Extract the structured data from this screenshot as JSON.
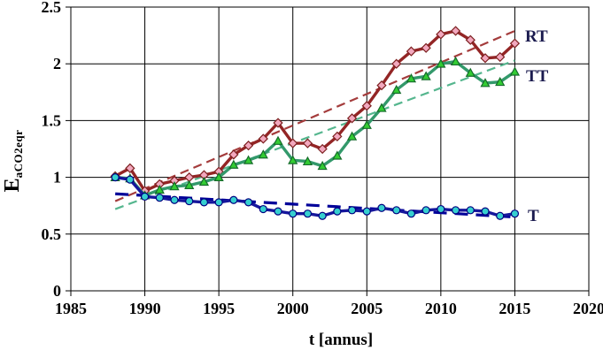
{
  "chart_data": {
    "type": "line",
    "title": "",
    "xlabel": "t [annus]",
    "ylabel_main": "E",
    "ylabel_sub": "aCO2eqr",
    "xlim": [
      1985,
      2020
    ],
    "ylim": [
      0,
      2.5
    ],
    "x_ticks": [
      1985,
      1990,
      1995,
      2000,
      2005,
      2010,
      2015,
      2020
    ],
    "y_ticks": [
      0,
      0.5,
      1,
      1.5,
      2,
      2.5
    ],
    "y_tick_labels": [
      "0",
      "0.5",
      "1",
      "1.5",
      "2",
      "2.5"
    ],
    "grid": true,
    "legend_position": "right-inline",
    "x": [
      1988,
      1989,
      1990,
      1991,
      1992,
      1993,
      1994,
      1995,
      1996,
      1997,
      1998,
      1999,
      2000,
      2001,
      2002,
      2003,
      2004,
      2005,
      2006,
      2007,
      2008,
      2009,
      2010,
      2011,
      2012,
      2013,
      2014,
      2015
    ],
    "series": [
      {
        "name": "RT",
        "line_color": "#932525",
        "marker": "diamond",
        "marker_fill": "#f2a8be",
        "marker_stroke": "#7c1f1f",
        "values": [
          1.01,
          1.08,
          0.88,
          0.94,
          0.97,
          1.0,
          1.02,
          1.05,
          1.2,
          1.28,
          1.34,
          1.48,
          1.3,
          1.3,
          1.25,
          1.36,
          1.52,
          1.63,
          1.81,
          2.0,
          2.11,
          2.14,
          2.26,
          2.29,
          2.21,
          2.05,
          2.06,
          2.18
        ]
      },
      {
        "name": "TT",
        "line_color": "#33996b",
        "marker": "triangle",
        "marker_fill": "#33cc33",
        "marker_stroke": "#156b2b",
        "values": [
          1.0,
          0.99,
          0.84,
          0.89,
          0.92,
          0.93,
          0.96,
          1.0,
          1.11,
          1.15,
          1.2,
          1.32,
          1.15,
          1.14,
          1.1,
          1.19,
          1.36,
          1.46,
          1.61,
          1.77,
          1.87,
          1.89,
          2.0,
          2.02,
          1.92,
          1.83,
          1.84,
          1.93
        ]
      },
      {
        "name": "T",
        "line_color": "#16169c",
        "marker": "circle",
        "marker_fill": "#36cfcf",
        "marker_stroke": "#000080",
        "values": [
          1.0,
          0.98,
          0.83,
          0.82,
          0.8,
          0.79,
          0.78,
          0.78,
          0.8,
          0.78,
          0.72,
          0.7,
          0.68,
          0.68,
          0.66,
          0.7,
          0.71,
          0.7,
          0.73,
          0.71,
          0.68,
          0.71,
          0.72,
          0.71,
          0.71,
          0.7,
          0.66,
          0.68
        ]
      }
    ],
    "trendlines": [
      {
        "series": "RT",
        "color": "#a43c3c",
        "x1": 1988,
        "y1": 0.79,
        "x2": 2015,
        "y2": 2.29
      },
      {
        "series": "TT",
        "color": "#55b68e",
        "x1": 1988,
        "y1": 0.72,
        "x2": 2015,
        "y2": 2.03
      },
      {
        "series": "T",
        "color": "#000099",
        "x1": 1988,
        "y1": 0.855,
        "x2": 2015,
        "y2": 0.65
      }
    ],
    "axis_color": "#000000",
    "grid_color": "#000000"
  }
}
